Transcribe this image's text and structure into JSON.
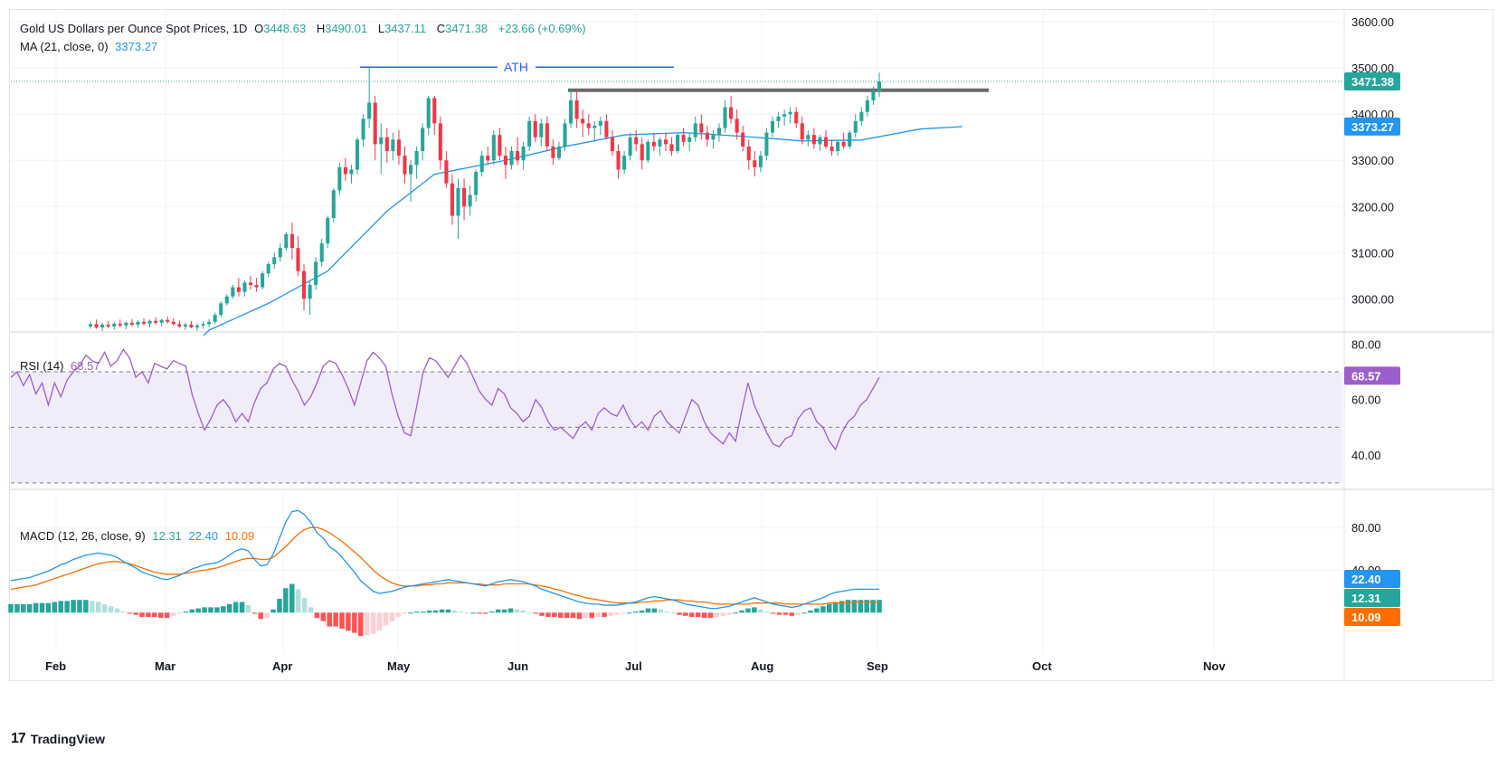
{
  "legend": {
    "title": "Gold US Dollars per Ounce Spot Prices, 1D",
    "open_label": "O",
    "open": "3448.63",
    "high_label": "H",
    "high": "3490.01",
    "low_label": "L",
    "low": "3437.11",
    "close_label": "C",
    "close": "3471.38",
    "change": "+23.66 (+0.69%)",
    "ma_label": "MA (21, close, 0)",
    "ma_value": "3373.27",
    "rsi_label": "RSI (14)",
    "rsi_value": "68.57",
    "macd_label": "MACD (12, 26, close, 9)",
    "macd_hist": "12.31",
    "macd_line": "22.40",
    "macd_signal": "10.09"
  },
  "annotation": {
    "ath_label": "ATH"
  },
  "branding": {
    "logo_mark": "17",
    "logo_text": "TradingView"
  },
  "colors": {
    "up": "#26a69a",
    "down": "#f23645",
    "ma": "#2196f3",
    "rsi": "#9c5fc9",
    "rsi_band": "#f1ecfa",
    "macd": "#2196f3",
    "signal": "#ff6d00",
    "hist_up_strong": "#26a69a",
    "hist_up_weak": "#b2dfdb",
    "hist_down_strong": "#ff5252",
    "hist_down_weak": "#ffcdd2",
    "resistance": "#6b6b6b",
    "grid": "#f0f3fa",
    "axis_text": "#131722"
  },
  "chart_data": [
    {
      "type": "candlestick",
      "title": "Gold US Dollars per Ounce Spot Prices, 1D",
      "ylim": [
        2930,
        3620
      ],
      "y_ticks": [
        "3600.00",
        "3500.00",
        "3400.00",
        "3300.00",
        "3200.00",
        "3100.00",
        "3000.00"
      ],
      "x_ticks": [
        "Feb",
        "Mar",
        "Apr",
        "May",
        "Jun",
        "Jul",
        "Aug",
        "Sep",
        "Oct",
        "Nov"
      ],
      "last_price_label": "3471.38",
      "ma_label_value": "3373.27",
      "ath_level": 3500,
      "resistance_level": 3452,
      "candles": [
        [
          2940,
          2950,
          2935,
          2945
        ],
        [
          2945,
          2955,
          2935,
          2938
        ],
        [
          2938,
          2948,
          2930,
          2944
        ],
        [
          2944,
          2952,
          2936,
          2940
        ],
        [
          2940,
          2949,
          2933,
          2946
        ],
        [
          2946,
          2955,
          2938,
          2942
        ],
        [
          2942,
          2951,
          2934,
          2948
        ],
        [
          2948,
          2956,
          2940,
          2944
        ],
        [
          2944,
          2953,
          2937,
          2950
        ],
        [
          2950,
          2958,
          2942,
          2946
        ],
        [
          2946,
          2955,
          2938,
          2952
        ],
        [
          2952,
          2960,
          2944,
          2948
        ],
        [
          2948,
          2957,
          2940,
          2954
        ],
        [
          2954,
          2962,
          2946,
          2950
        ],
        [
          2950,
          2958,
          2942,
          2945
        ],
        [
          2945,
          2953,
          2937,
          2940
        ],
        [
          2940,
          2948,
          2932,
          2944
        ],
        [
          2944,
          2952,
          2936,
          2938
        ],
        [
          2938,
          2947,
          2930,
          2942
        ],
        [
          2942,
          2951,
          2935,
          2945
        ],
        [
          2945,
          2956,
          2938,
          2950
        ],
        [
          2950,
          2970,
          2945,
          2965
        ],
        [
          2965,
          2995,
          2960,
          2990
        ],
        [
          2990,
          3010,
          2985,
          3005
        ],
        [
          3005,
          3030,
          3000,
          3025
        ],
        [
          3025,
          3045,
          3005,
          3015
        ],
        [
          3015,
          3040,
          3005,
          3035
        ],
        [
          3035,
          3050,
          3020,
          3030
        ],
        [
          3030,
          3045,
          3015,
          3025
        ],
        [
          3025,
          3060,
          3020,
          3055
        ],
        [
          3055,
          3080,
          3048,
          3075
        ],
        [
          3075,
          3100,
          3065,
          3090
        ],
        [
          3090,
          3120,
          3080,
          3110
        ],
        [
          3110,
          3145,
          3105,
          3140
        ],
        [
          3140,
          3165,
          3085,
          3110
        ],
        [
          3110,
          3135,
          3050,
          3060
        ],
        [
          3060,
          3075,
          2975,
          3000
        ],
        [
          3000,
          3040,
          2965,
          3030
        ],
        [
          3030,
          3090,
          3020,
          3080
        ],
        [
          3080,
          3130,
          3070,
          3120
        ],
        [
          3120,
          3180,
          3110,
          3175
        ],
        [
          3175,
          3240,
          3165,
          3235
        ],
        [
          3235,
          3295,
          3225,
          3285
        ],
        [
          3285,
          3305,
          3255,
          3270
        ],
        [
          3270,
          3290,
          3250,
          3280
        ],
        [
          3280,
          3350,
          3270,
          3345
        ],
        [
          3345,
          3400,
          3330,
          3390
        ],
        [
          3390,
          3500,
          3370,
          3425
        ],
        [
          3425,
          3440,
          3300,
          3335
        ],
        [
          3335,
          3380,
          3270,
          3350
        ],
        [
          3350,
          3370,
          3295,
          3320
        ],
        [
          3320,
          3360,
          3300,
          3345
        ],
        [
          3345,
          3365,
          3290,
          3310
        ],
        [
          3310,
          3330,
          3250,
          3270
        ],
        [
          3270,
          3300,
          3210,
          3290
        ],
        [
          3290,
          3330,
          3260,
          3320
        ],
        [
          3320,
          3380,
          3300,
          3370
        ],
        [
          3370,
          3440,
          3355,
          3435
        ],
        [
          3435,
          3440,
          3355,
          3380
        ],
        [
          3380,
          3395,
          3280,
          3300
        ],
        [
          3300,
          3320,
          3240,
          3250
        ],
        [
          3250,
          3270,
          3160,
          3180
        ],
        [
          3180,
          3260,
          3130,
          3240
        ],
        [
          3240,
          3260,
          3170,
          3200
        ],
        [
          3200,
          3245,
          3180,
          3225
        ],
        [
          3225,
          3280,
          3210,
          3275
        ],
        [
          3275,
          3320,
          3265,
          3310
        ],
        [
          3310,
          3330,
          3290,
          3300
        ],
        [
          3300,
          3365,
          3290,
          3355
        ],
        [
          3355,
          3370,
          3300,
          3310
        ],
        [
          3310,
          3330,
          3260,
          3290
        ],
        [
          3290,
          3330,
          3280,
          3320
        ],
        [
          3320,
          3350,
          3290,
          3300
        ],
        [
          3300,
          3340,
          3280,
          3330
        ],
        [
          3330,
          3395,
          3320,
          3385
        ],
        [
          3385,
          3400,
          3340,
          3350
        ],
        [
          3350,
          3390,
          3330,
          3380
        ],
        [
          3380,
          3395,
          3320,
          3330
        ],
        [
          3330,
          3345,
          3290,
          3305
        ],
        [
          3305,
          3340,
          3300,
          3330
        ],
        [
          3330,
          3390,
          3320,
          3380
        ],
        [
          3380,
          3455,
          3370,
          3430
        ],
        [
          3430,
          3450,
          3370,
          3390
        ],
        [
          3390,
          3410,
          3350,
          3380
        ],
        [
          3380,
          3400,
          3355,
          3370
        ],
        [
          3370,
          3385,
          3340,
          3375
        ],
        [
          3375,
          3395,
          3355,
          3385
        ],
        [
          3385,
          3400,
          3345,
          3350
        ],
        [
          3350,
          3365,
          3310,
          3320
        ],
        [
          3320,
          3335,
          3260,
          3280
        ],
        [
          3280,
          3320,
          3270,
          3310
        ],
        [
          3310,
          3360,
          3300,
          3350
        ],
        [
          3350,
          3365,
          3320,
          3335
        ],
        [
          3335,
          3350,
          3280,
          3300
        ],
        [
          3300,
          3345,
          3295,
          3340
        ],
        [
          3340,
          3360,
          3320,
          3330
        ],
        [
          3330,
          3350,
          3310,
          3345
        ],
        [
          3345,
          3360,
          3320,
          3335
        ],
        [
          3335,
          3350,
          3310,
          3320
        ],
        [
          3320,
          3360,
          3315,
          3355
        ],
        [
          3355,
          3370,
          3330,
          3340
        ],
        [
          3340,
          3360,
          3320,
          3350
        ],
        [
          3350,
          3395,
          3340,
          3380
        ],
        [
          3380,
          3400,
          3345,
          3360
        ],
        [
          3360,
          3375,
          3330,
          3345
        ],
        [
          3345,
          3365,
          3325,
          3355
        ],
        [
          3355,
          3380,
          3340,
          3370
        ],
        [
          3370,
          3430,
          3360,
          3415
        ],
        [
          3415,
          3440,
          3380,
          3390
        ],
        [
          3390,
          3410,
          3345,
          3360
        ],
        [
          3360,
          3375,
          3320,
          3330
        ],
        [
          3330,
          3345,
          3280,
          3300
        ],
        [
          3300,
          3320,
          3265,
          3285
        ],
        [
          3285,
          3320,
          3275,
          3310
        ],
        [
          3310,
          3370,
          3300,
          3360
        ],
        [
          3360,
          3395,
          3350,
          3385
        ],
        [
          3385,
          3405,
          3370,
          3395
        ],
        [
          3395,
          3410,
          3375,
          3400
        ],
        [
          3400,
          3415,
          3380,
          3405
        ],
        [
          3405,
          3415,
          3370,
          3380
        ],
        [
          3380,
          3395,
          3335,
          3345
        ],
        [
          3345,
          3365,
          3330,
          3355
        ],
        [
          3355,
          3370,
          3325,
          3335
        ],
        [
          3335,
          3355,
          3320,
          3350
        ],
        [
          3350,
          3365,
          3325,
          3330
        ],
        [
          3330,
          3345,
          3310,
          3320
        ],
        [
          3320,
          3345,
          3310,
          3340
        ],
        [
          3340,
          3360,
          3325,
          3330
        ],
        [
          3330,
          3365,
          3325,
          3360
        ],
        [
          3360,
          3400,
          3350,
          3385
        ],
        [
          3385,
          3415,
          3375,
          3405
        ],
        [
          3405,
          3440,
          3395,
          3430
        ],
        [
          3430,
          3460,
          3420,
          3448
        ],
        [
          3448,
          3490,
          3437,
          3471
        ]
      ],
      "ma21_levels": [
        [
          0,
          2920
        ],
        [
          20,
          2932
        ],
        [
          30,
          2990
        ],
        [
          40,
          3060
        ],
        [
          50,
          3190
        ],
        [
          58,
          3270
        ],
        [
          70,
          3300
        ],
        [
          80,
          3330
        ],
        [
          90,
          3355
        ],
        [
          100,
          3360
        ],
        [
          110,
          3352
        ],
        [
          120,
          3342
        ],
        [
          130,
          3344
        ],
        [
          140,
          3368
        ],
        [
          147,
          3373
        ]
      ]
    },
    {
      "type": "line",
      "title": "RSI (14)",
      "ylim": [
        28,
        84
      ],
      "y_ticks": [
        "80.00",
        "60.00",
        "40.00"
      ],
      "bands": {
        "upper": 70,
        "middle": 50,
        "lower": 30
      },
      "last_value_label": "68.57",
      "values": [
        68,
        70,
        65,
        69,
        62,
        66,
        58,
        66,
        61,
        67,
        70,
        72,
        76,
        74,
        73,
        77,
        72,
        74,
        78,
        75,
        68,
        70,
        66,
        73,
        72,
        71,
        74,
        73,
        72,
        62,
        55,
        49,
        53,
        58,
        60,
        57,
        52,
        55,
        52,
        59,
        64,
        66,
        71,
        73,
        72,
        67,
        63,
        58,
        61,
        66,
        72,
        74,
        73,
        69,
        64,
        58,
        66,
        74,
        77,
        75,
        72,
        62,
        54,
        48,
        47,
        58,
        70,
        75,
        74,
        71,
        68,
        72,
        76,
        73,
        68,
        63,
        60,
        58,
        64,
        62,
        57,
        55,
        52,
        54,
        60,
        57,
        52,
        49,
        50,
        48,
        46,
        50,
        52,
        49,
        55,
        57,
        55,
        54,
        58,
        53,
        50,
        52,
        49,
        54,
        56,
        52,
        50,
        48,
        54,
        60,
        58,
        52,
        48,
        46,
        44,
        48,
        45,
        56,
        66,
        58,
        53,
        48,
        44,
        43,
        46,
        47,
        53,
        56,
        57,
        52,
        50,
        45,
        42,
        48,
        52,
        54,
        58,
        60,
        64,
        68
      ]
    },
    {
      "type": "bar+line",
      "title": "MACD (12, 26, close, 9)",
      "ylim": [
        -38,
        115
      ],
      "y_ticks": [
        "80.00",
        "40.00"
      ],
      "last_labels": {
        "macd": "22.40",
        "histogram": "12.31",
        "signal": "10.09"
      },
      "macd": [
        30,
        31,
        32,
        33,
        35,
        37,
        39,
        42,
        45,
        47,
        50,
        52,
        54,
        55,
        56,
        55,
        54,
        52,
        48,
        45,
        42,
        38,
        36,
        34,
        32,
        31,
        33,
        35,
        38,
        41,
        43,
        45,
        46,
        47,
        50,
        54,
        58,
        60,
        58,
        50,
        44,
        45,
        55,
        70,
        85,
        95,
        96,
        92,
        85,
        75,
        70,
        62,
        58,
        52,
        45,
        38,
        30,
        25,
        20,
        18,
        19,
        20,
        22,
        24,
        25,
        26,
        27,
        28,
        29,
        30,
        31,
        30,
        29,
        28,
        27,
        26,
        25,
        27,
        29,
        30,
        31,
        30,
        29,
        27,
        25,
        22,
        20,
        18,
        16,
        14,
        12,
        10,
        9,
        8,
        8,
        7,
        7,
        7,
        8,
        9,
        10,
        12,
        14,
        15,
        14,
        13,
        12,
        10,
        8,
        7,
        6,
        5,
        4,
        4,
        5,
        6,
        8,
        10,
        12,
        14,
        12,
        10,
        8,
        7,
        6,
        5,
        6,
        8,
        10,
        12,
        14,
        17,
        19,
        20,
        21,
        22,
        22,
        22,
        22,
        22
      ],
      "signal": [
        22,
        23,
        24,
        25,
        26,
        28,
        30,
        32,
        34,
        36,
        38,
        40,
        42,
        44,
        46,
        47,
        48,
        48,
        47,
        46,
        44,
        42,
        40,
        38,
        37,
        36,
        36,
        36,
        37,
        38,
        39,
        40,
        41,
        42,
        44,
        46,
        48,
        50,
        51,
        51,
        50,
        50,
        52,
        57,
        62,
        68,
        74,
        78,
        80,
        80,
        78,
        75,
        71,
        67,
        62,
        57,
        52,
        46,
        40,
        35,
        31,
        28,
        26,
        25,
        25,
        25,
        26,
        26,
        27,
        27,
        28,
        28,
        28,
        28,
        27,
        27,
        26,
        26,
        26,
        27,
        27,
        27,
        27,
        27,
        26,
        25,
        24,
        22,
        21,
        19,
        17,
        16,
        14,
        13,
        12,
        11,
        10,
        9,
        9,
        9,
        9,
        10,
        10,
        11,
        11,
        12,
        12,
        12,
        11,
        11,
        10,
        10,
        9,
        8,
        8,
        8,
        8,
        8,
        8,
        9,
        9,
        9,
        9,
        9,
        8,
        8,
        8,
        8,
        8,
        8,
        8,
        9,
        9,
        9,
        9,
        10,
        10,
        10,
        10,
        10
      ]
    }
  ]
}
